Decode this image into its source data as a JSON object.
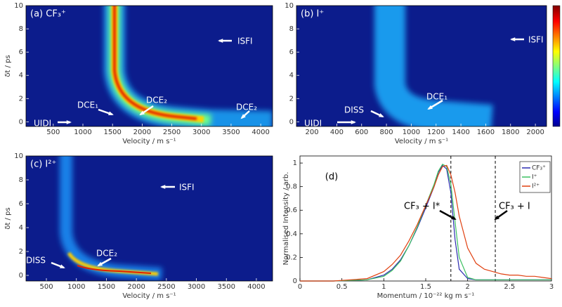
{
  "chart_data": [
    {
      "type": "heatmap",
      "title": "(a) CF₃⁺",
      "xlabel": "Velocity / m s⁻¹",
      "ylabel": "δt / ps",
      "xlim": [
        40,
        4200
      ],
      "ylim": [
        -0.4,
        10
      ],
      "xticks": [
        500,
        1000,
        1500,
        2000,
        2500,
        3000,
        3500,
        4000
      ],
      "yticks": [
        0,
        2,
        4,
        6,
        8,
        10
      ],
      "annotations": [
        "UIDI",
        "DCE₁",
        "DCE₂",
        "DCE₂",
        "ISFI"
      ]
    },
    {
      "type": "heatmap",
      "title": "(b) I⁺",
      "xlabel": "Velocity / m s⁻¹",
      "xlim": [
        75,
        2090
      ],
      "ylim": [
        -0.4,
        10
      ],
      "xticks": [
        200,
        400,
        600,
        800,
        1000,
        1200,
        1400,
        1600,
        1800,
        2000
      ],
      "yticks": [
        0,
        2,
        4,
        6,
        8,
        10
      ],
      "annotations": [
        "UIDI",
        "DISS",
        "DCE₁",
        "ISFI"
      ]
    },
    {
      "type": "heatmap",
      "title": "(c) I²⁺",
      "xlabel": "Velocity / m s⁻¹",
      "ylabel": "δt / ps",
      "xlim": [
        160,
        4270
      ],
      "ylim": [
        -0.47,
        10
      ],
      "xticks": [
        500,
        1000,
        1500,
        2000,
        2500,
        3000,
        3500,
        4000
      ],
      "yticks": [
        0,
        2,
        4,
        6,
        8,
        10
      ],
      "annotations": [
        "DISS",
        "DCE₂",
        "ISFI"
      ]
    },
    {
      "type": "line",
      "title": "(d)",
      "xlabel": "Momentum / 10⁻²² kg m s⁻¹",
      "ylabel": "Normalised Intensity / arb.",
      "xlim": [
        0,
        3
      ],
      "ylim": [
        0,
        1.06
      ],
      "xticks": [
        0,
        0.5,
        1,
        1.5,
        2,
        2.5,
        3
      ],
      "yticks": [
        0,
        0.2,
        0.4,
        0.6,
        0.8,
        1
      ],
      "x": [
        0,
        0.2,
        0.4,
        0.6,
        0.8,
        1.0,
        1.1,
        1.2,
        1.3,
        1.4,
        1.5,
        1.6,
        1.65,
        1.7,
        1.75,
        1.8,
        1.85,
        1.9,
        2.0,
        2.1,
        2.2,
        2.3,
        2.4,
        2.5,
        2.6,
        2.7,
        2.8,
        2.9,
        3.0
      ],
      "series": [
        {
          "name": "CF₃⁺",
          "color": "#2b2bb0",
          "values": [
            0,
            0,
            0,
            0.005,
            0.01,
            0.05,
            0.1,
            0.18,
            0.3,
            0.45,
            0.62,
            0.8,
            0.92,
            0.98,
            0.95,
            0.75,
            0.35,
            0.1,
            0.02,
            0.01,
            0.01,
            0.01,
            0.01,
            0.01,
            0.01,
            0.01,
            0.01,
            0.01,
            0.01
          ]
        },
        {
          "name": "I⁺",
          "color": "#3cc060",
          "values": [
            0,
            0,
            0,
            0.005,
            0.01,
            0.04,
            0.09,
            0.17,
            0.3,
            0.46,
            0.64,
            0.82,
            0.93,
            0.99,
            0.97,
            0.82,
            0.5,
            0.2,
            0.03,
            0.01,
            0.01,
            0.01,
            0.01,
            0.01,
            0.01,
            0.01,
            0.01,
            0.01,
            0.01
          ]
        },
        {
          "name": "I²⁺",
          "color": "#e04010",
          "values": [
            0,
            0,
            0,
            0.01,
            0.02,
            0.08,
            0.14,
            0.22,
            0.34,
            0.48,
            0.64,
            0.8,
            0.9,
            0.97,
            0.98,
            0.9,
            0.75,
            0.55,
            0.28,
            0.15,
            0.1,
            0.08,
            0.06,
            0.05,
            0.05,
            0.04,
            0.04,
            0.03,
            0.02
          ]
        }
      ],
      "vlines": [
        1.8,
        2.33
      ],
      "annotations": [
        "CF₃ + I*",
        "CF₃ + I"
      ]
    }
  ]
}
